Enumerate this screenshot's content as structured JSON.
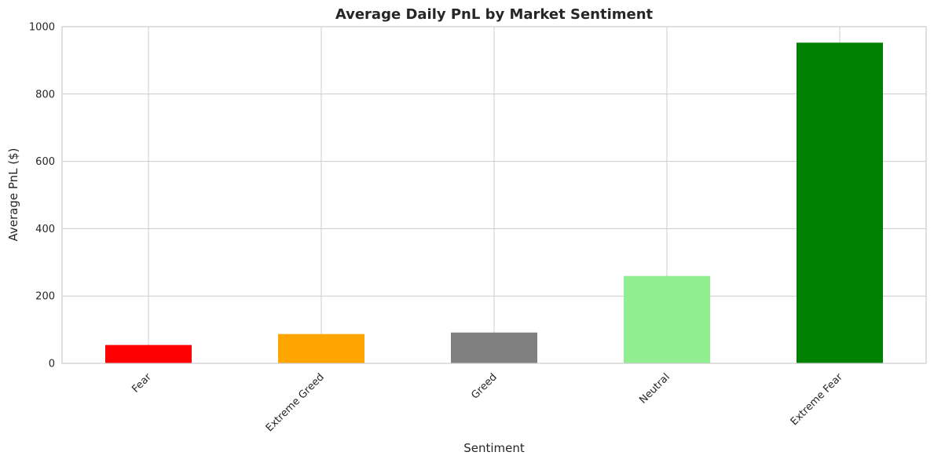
{
  "chart_data": {
    "type": "bar",
    "title": "Average Daily PnL by Market Sentiment",
    "xlabel": "Sentiment",
    "ylabel": "Average PnL ($)",
    "categories": [
      "Fear",
      "Extreme Greed",
      "Greed",
      "Neutral",
      "Extreme Fear"
    ],
    "values": [
      54.5,
      87.0,
      91.5,
      259.5,
      952.5
    ],
    "colors": [
      "#ff0000",
      "#ffa500",
      "#808080",
      "#90ee90",
      "#008000"
    ],
    "ylim": [
      0,
      1000
    ],
    "yticks": [
      0,
      200,
      400,
      600,
      800,
      1000
    ],
    "grid": true,
    "legend": "none"
  }
}
